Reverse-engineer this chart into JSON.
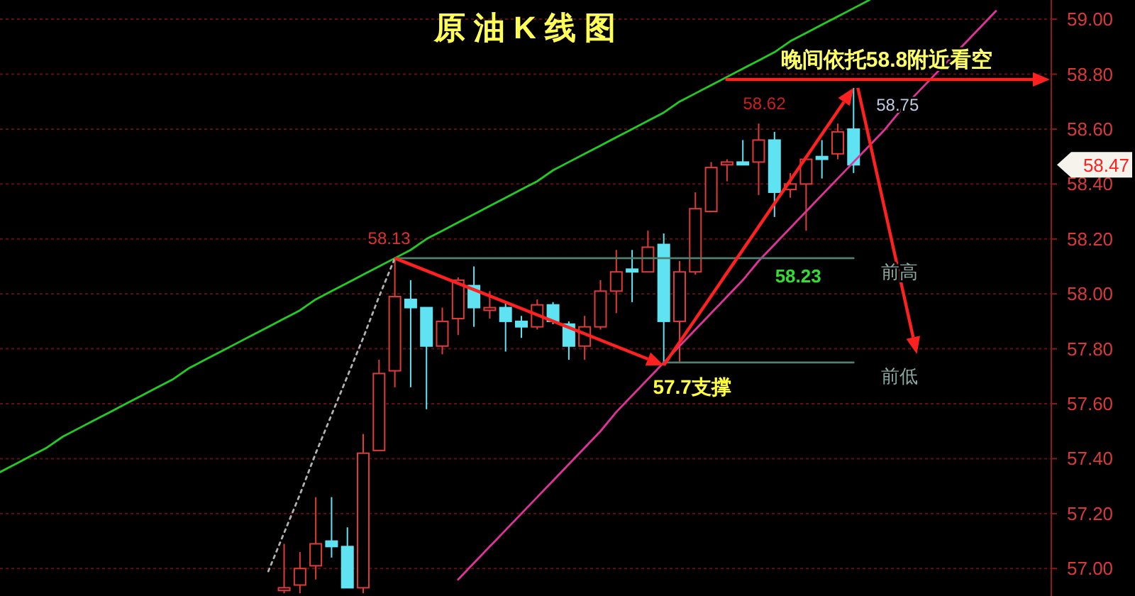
{
  "chart_data": {
    "type": "candlestick",
    "title": "原 油 K 线 图",
    "categories": [
      null,
      null,
      null,
      null,
      null,
      null,
      null,
      null,
      null,
      null,
      null,
      null,
      null,
      null,
      null,
      null,
      null,
      null,
      null,
      null,
      null,
      null,
      null,
      null,
      null,
      null,
      null,
      null,
      null,
      null,
      null,
      null,
      null,
      null,
      null,
      null,
      null,
      null,
      null,
      null,
      null,
      null,
      null,
      null,
      null,
      null,
      null,
      null,
      null,
      null,
      null,
      null,
      null,
      null,
      null,
      null,
      null,
      null,
      null,
      null,
      null,
      null,
      null,
      null,
      null,
      null,
      null
    ],
    "ohlc": [
      null,
      null,
      null,
      null,
      null,
      null,
      null,
      null,
      null,
      null,
      null,
      null,
      null,
      null,
      null,
      null,
      null,
      null,
      [
        56.92,
        57.09,
        56.91,
        56.93
      ],
      [
        56.94,
        57.06,
        56.91,
        57.0
      ],
      [
        57.01,
        57.26,
        56.96,
        57.09
      ],
      [
        57.1,
        57.26,
        57.04,
        57.08
      ],
      [
        57.08,
        57.15,
        56.93,
        56.93
      ],
      [
        56.93,
        57.49,
        56.91,
        57.42
      ],
      [
        57.43,
        57.76,
        57.43,
        57.71
      ],
      [
        57.72,
        58.13,
        57.66,
        57.99
      ],
      [
        57.98,
        58.05,
        57.66,
        57.95
      ],
      [
        57.95,
        57.95,
        57.58,
        57.81
      ],
      [
        57.81,
        57.95,
        57.78,
        57.9
      ],
      [
        57.91,
        58.06,
        57.85,
        58.05
      ],
      [
        58.03,
        58.1,
        57.88,
        57.95
      ],
      [
        57.94,
        58.01,
        57.91,
        57.95
      ],
      [
        57.95,
        57.97,
        57.79,
        57.9
      ],
      [
        57.9,
        57.92,
        57.84,
        57.88
      ],
      [
        57.88,
        57.98,
        57.87,
        57.96
      ],
      [
        57.96,
        57.97,
        57.89,
        57.9
      ],
      [
        57.89,
        57.9,
        57.76,
        57.81
      ],
      [
        57.81,
        57.92,
        57.76,
        57.88
      ],
      [
        57.88,
        58.05,
        57.87,
        58.01
      ],
      [
        58.01,
        58.16,
        57.93,
        58.08
      ],
      [
        58.09,
        58.16,
        57.97,
        58.08
      ],
      [
        58.08,
        58.23,
        58.08,
        58.17
      ],
      [
        58.18,
        58.22,
        57.74,
        57.9
      ],
      [
        57.9,
        58.12,
        57.75,
        58.08
      ],
      [
        58.08,
        58.37,
        58.07,
        58.31
      ],
      [
        58.3,
        58.48,
        58.3,
        58.46
      ],
      [
        58.47,
        58.49,
        58.41,
        58.48
      ],
      [
        58.48,
        58.56,
        58.47,
        58.47
      ],
      [
        58.48,
        58.62,
        58.36,
        58.56
      ],
      [
        58.56,
        58.59,
        58.28,
        58.37
      ],
      [
        58.38,
        58.44,
        58.35,
        58.4
      ],
      [
        58.4,
        58.5,
        58.23,
        58.49
      ],
      [
        58.5,
        58.56,
        58.42,
        58.49
      ],
      [
        58.51,
        58.62,
        58.49,
        58.59
      ],
      [
        58.6,
        58.75,
        58.44,
        58.47
      ],
      null,
      null,
      null,
      null,
      null,
      null,
      null,
      null,
      null,
      null,
      null,
      null
    ],
    "series": [
      {
        "type": "line",
        "color": "#22cc22",
        "line_style": "solid",
        "values": [
          57.35,
          57.38,
          57.41,
          57.44,
          57.48,
          57.51,
          57.54,
          57.57,
          57.6,
          57.63,
          57.66,
          57.69,
          57.73,
          57.76,
          57.79,
          57.82,
          57.85,
          57.88,
          57.91,
          57.94,
          57.98,
          58.01,
          58.04,
          58.07,
          58.1,
          58.13,
          58.16,
          58.2,
          58.23,
          58.26,
          58.29,
          58.32,
          58.35,
          58.38,
          58.41,
          58.45,
          58.48,
          58.51,
          58.54,
          58.57,
          58.6,
          58.63,
          58.66,
          58.7,
          58.73,
          58.76,
          58.79,
          58.82,
          58.85,
          58.88,
          58.92,
          58.95,
          58.98,
          59.01,
          59.04,
          59.07,
          null,
          null,
          null,
          null,
          null,
          null,
          null,
          null,
          null,
          null,
          null
        ]
      },
      {
        "type": "line",
        "color": "#e0329a",
        "line_style": "solid",
        "values": [
          null,
          null,
          null,
          null,
          null,
          null,
          null,
          null,
          null,
          null,
          null,
          null,
          null,
          null,
          null,
          null,
          null,
          null,
          null,
          null,
          null,
          null,
          null,
          null,
          null,
          null,
          null,
          null,
          null,
          56.96,
          57.02,
          57.08,
          57.14,
          57.2,
          57.26,
          57.32,
          57.38,
          57.44,
          57.5,
          57.57,
          57.63,
          57.69,
          57.75,
          57.81,
          57.87,
          57.93,
          57.99,
          58.05,
          58.12,
          58.18,
          58.24,
          58.3,
          58.36,
          58.42,
          58.48,
          58.54,
          58.6,
          58.67,
          58.73,
          58.79,
          58.85,
          58.91,
          58.97,
          59.03,
          null,
          null,
          null
        ]
      },
      {
        "type": "line",
        "color": "#b0b0b0",
        "line_style": "dotted",
        "values": [
          null,
          null,
          null,
          null,
          null,
          null,
          null,
          null,
          null,
          null,
          null,
          null,
          null,
          null,
          null,
          null,
          null,
          56.99,
          57.13,
          57.27,
          57.42,
          57.56,
          57.7,
          57.84,
          57.99,
          58.13,
          null,
          null,
          null,
          null,
          null,
          null,
          null,
          null,
          null,
          null,
          null,
          null,
          null,
          null,
          null,
          null,
          null,
          null,
          null,
          null,
          null,
          null,
          null,
          null,
          null,
          null,
          null,
          null,
          null,
          null,
          null,
          null,
          null,
          null,
          null,
          null,
          null,
          null,
          null,
          null,
          null
        ]
      },
      {
        "type": "line",
        "color": "#4f7f70",
        "line_style": "solid",
        "values": [
          null,
          null,
          null,
          null,
          null,
          null,
          null,
          null,
          null,
          null,
          null,
          null,
          null,
          null,
          null,
          null,
          null,
          null,
          null,
          null,
          null,
          null,
          null,
          null,
          null,
          58.13,
          58.13,
          58.13,
          58.13,
          58.13,
          58.13,
          58.13,
          58.13,
          58.13,
          58.13,
          58.13,
          58.13,
          58.13,
          58.13,
          58.13,
          58.13,
          58.13,
          58.13,
          58.13,
          58.13,
          58.13,
          58.13,
          58.13,
          58.13,
          58.13,
          58.13,
          58.13,
          58.13,
          58.13,
          58.13,
          null,
          null,
          null,
          null,
          null,
          null,
          null,
          null,
          null,
          null,
          null,
          null
        ]
      },
      {
        "type": "line",
        "color": "#4f7f70",
        "line_style": "solid",
        "values": [
          null,
          null,
          null,
          null,
          null,
          null,
          null,
          null,
          null,
          null,
          null,
          null,
          null,
          null,
          null,
          null,
          null,
          null,
          null,
          null,
          null,
          null,
          null,
          null,
          null,
          null,
          null,
          null,
          null,
          null,
          null,
          null,
          null,
          null,
          null,
          null,
          null,
          null,
          null,
          null,
          null,
          null,
          57.75,
          57.75,
          57.75,
          57.75,
          57.75,
          57.75,
          57.75,
          57.75,
          57.75,
          57.75,
          57.75,
          57.75,
          57.75,
          null,
          null,
          null,
          null,
          null,
          null,
          null,
          null,
          null,
          null,
          null,
          null
        ]
      }
    ],
    "ylim": [
      56.9,
      59.07
    ],
    "yticks": [
      {
        "value": 57,
        "label": "57.00"
      },
      {
        "value": 57.2,
        "label": "57.20"
      },
      {
        "value": 57.4,
        "label": "57.40"
      },
      {
        "value": 57.6,
        "label": "57.60"
      },
      {
        "value": 57.8,
        "label": "57.80"
      },
      {
        "value": 58,
        "label": "58.00"
      },
      {
        "value": 58.2,
        "label": "58.20"
      },
      {
        "value": 58.4,
        "label": "58.40"
      },
      {
        "value": 58.6,
        "label": "58.60"
      },
      {
        "value": 58.8,
        "label": "58.80"
      },
      {
        "value": 59,
        "label": "59.00"
      }
    ],
    "grid": "y",
    "tick_labels": "y",
    "annotations": [
      {
        "text": "58.13",
        "y": 58.13
      },
      {
        "text": "58.62",
        "y": 58.62
      },
      "58.75",
      {
        "text": "58.23",
        "y": 58.13
      },
      {
        "text": "57.7支撑",
        "y": 57.74
      },
      "晚间依托58.8附近看空",
      "前高",
      "前低",
      "58.47"
    ]
  }
}
